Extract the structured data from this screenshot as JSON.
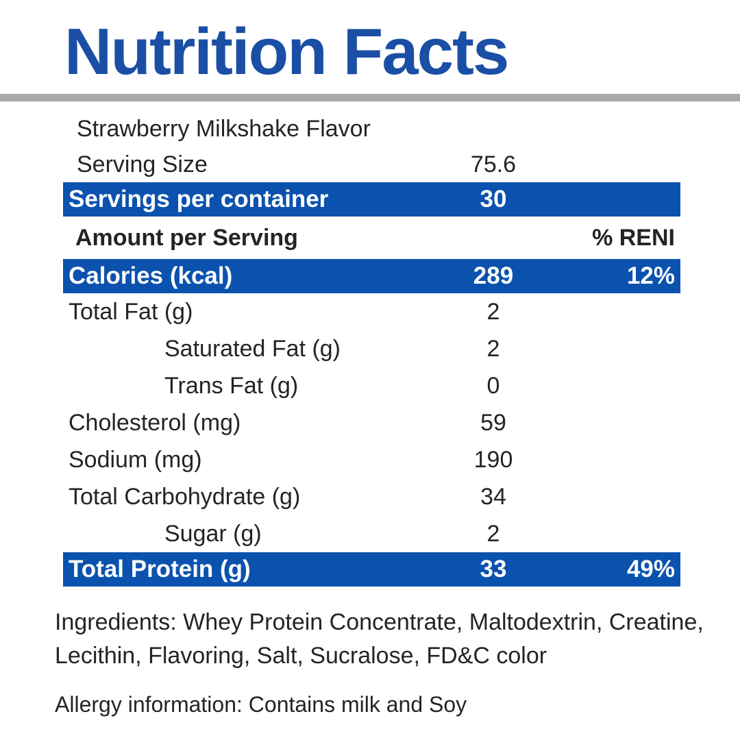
{
  "title": "Nutrition Facts",
  "colors": {
    "title_blue": "#1a4fa5",
    "bar_blue": "#0b52ae",
    "divider_gray": "#a9a9a9",
    "text": "#242424"
  },
  "header": {
    "flavor": "Strawberry Milkshake Flavor",
    "serving_size": {
      "label": "Serving Size",
      "value": "75.6"
    },
    "servings_per_container": {
      "label": "Servings per container",
      "value": "30"
    },
    "amount_per_serving": {
      "label": "Amount per Serving",
      "percent_header": "% RENI"
    }
  },
  "rows": [
    {
      "label": "Calories (kcal)",
      "value": "289",
      "percent": "12%",
      "style": "bar",
      "indent": false
    },
    {
      "label": "Total Fat (g)",
      "value": "2",
      "percent": "",
      "style": "plain",
      "indent": false
    },
    {
      "label": "Saturated Fat (g)",
      "value": "2",
      "percent": "",
      "style": "plain",
      "indent": true
    },
    {
      "label": "Trans Fat (g)",
      "value": "0",
      "percent": "",
      "style": "plain",
      "indent": true
    },
    {
      "label": "Cholesterol (mg)",
      "value": "59",
      "percent": "",
      "style": "plain",
      "indent": false
    },
    {
      "label": "Sodium (mg)",
      "value": "190",
      "percent": "",
      "style": "plain",
      "indent": false
    },
    {
      "label": "Total Carbohydrate (g)",
      "value": "34",
      "percent": "",
      "style": "plain",
      "indent": false
    },
    {
      "label": "Sugar (g)",
      "value": "2",
      "percent": "",
      "style": "plain",
      "indent": true
    },
    {
      "label": "Total Protein (g)",
      "value": "33",
      "percent": "49%",
      "style": "bar",
      "indent": false
    }
  ],
  "footer": {
    "ingredients": "Ingredients: Whey Protein Concentrate, Maltodextrin, Creatine, Lecithin, Flavoring, Salt, Sucralose, FD&C color",
    "allergy": "Allergy information: Contains milk and Soy"
  }
}
